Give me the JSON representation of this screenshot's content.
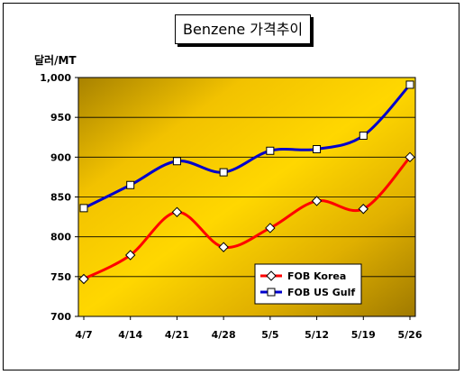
{
  "chart_data": {
    "type": "line",
    "title": "Benzene 가격추이",
    "ylabel": "달러/MT",
    "xlabel": "",
    "categories": [
      "4/7",
      "4/14",
      "4/21",
      "4/28",
      "5/5",
      "5/12",
      "5/19",
      "5/26"
    ],
    "y_tick_labels": [
      "700",
      "750",
      "800",
      "850",
      "900",
      "950",
      "1,000"
    ],
    "ylim": [
      700,
      1000
    ],
    "grid": true,
    "legend_position": "bottom-right",
    "series": [
      {
        "name": "FOB Korea",
        "color": "#ff0000",
        "marker": "diamond",
        "values": [
          747,
          777,
          831,
          787,
          811,
          845,
          835,
          900
        ]
      },
      {
        "name": "FOB US Gulf",
        "color": "#0000cc",
        "marker": "square",
        "values": [
          836,
          865,
          895,
          881,
          908,
          910,
          927,
          991
        ]
      }
    ],
    "plot_background": "gold-gradient"
  }
}
